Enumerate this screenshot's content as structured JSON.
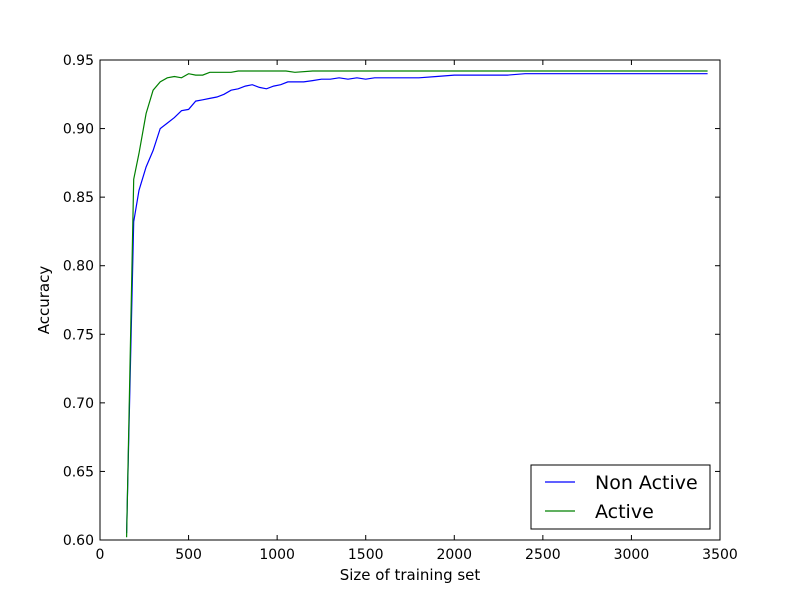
{
  "chart_data": {
    "type": "line",
    "title": "",
    "xlabel": "Size of training set",
    "ylabel": "Accuracy",
    "xlim": [
      0,
      3500
    ],
    "ylim": [
      0.6,
      0.95
    ],
    "xticks": [
      0,
      500,
      1000,
      1500,
      2000,
      2500,
      3000,
      3500
    ],
    "yticks": [
      0.6,
      0.65,
      0.7,
      0.75,
      0.8,
      0.85,
      0.9,
      0.95
    ],
    "xtick_labels": [
      "0",
      "500",
      "1000",
      "1500",
      "2000",
      "2500",
      "3000",
      "3500"
    ],
    "ytick_labels": [
      "0.60",
      "0.65",
      "0.70",
      "0.75",
      "0.80",
      "0.85",
      "0.90",
      "0.95"
    ],
    "grid": false,
    "legend_position": "lower-right",
    "series": [
      {
        "name": "Non Active",
        "color": "#0000ff",
        "x": [
          150,
          190,
          220,
          260,
          300,
          340,
          380,
          420,
          460,
          500,
          540,
          580,
          620,
          660,
          700,
          740,
          780,
          820,
          860,
          900,
          940,
          980,
          1020,
          1060,
          1100,
          1150,
          1200,
          1250,
          1300,
          1350,
          1400,
          1450,
          1500,
          1550,
          1600,
          1650,
          1700,
          1750,
          1800,
          1900,
          2000,
          2100,
          2200,
          2300,
          2400,
          2500,
          2600,
          2700,
          2800,
          2900,
          3000,
          3100,
          3200,
          3300,
          3430
        ],
        "y": [
          0.605,
          0.832,
          0.855,
          0.872,
          0.884,
          0.9,
          0.904,
          0.908,
          0.913,
          0.914,
          0.92,
          0.921,
          0.922,
          0.923,
          0.925,
          0.928,
          0.929,
          0.931,
          0.932,
          0.93,
          0.929,
          0.931,
          0.932,
          0.934,
          0.934,
          0.934,
          0.935,
          0.936,
          0.936,
          0.937,
          0.936,
          0.937,
          0.936,
          0.937,
          0.937,
          0.937,
          0.937,
          0.937,
          0.937,
          0.938,
          0.939,
          0.939,
          0.939,
          0.939,
          0.94,
          0.94,
          0.94,
          0.94,
          0.94,
          0.94,
          0.94,
          0.94,
          0.94,
          0.94,
          0.94
        ]
      },
      {
        "name": "Active",
        "color": "#008000",
        "x": [
          150,
          190,
          220,
          260,
          300,
          340,
          380,
          420,
          460,
          500,
          540,
          580,
          620,
          660,
          700,
          740,
          780,
          820,
          860,
          900,
          950,
          1000,
          1050,
          1100,
          1200,
          1300,
          1400,
          1500,
          1600,
          1700,
          1800,
          1900,
          2000,
          2100,
          2200,
          2300,
          2400,
          2500,
          2600,
          2700,
          2800,
          2900,
          3000,
          3100,
          3200,
          3300,
          3430
        ],
        "y": [
          0.602,
          0.863,
          0.882,
          0.911,
          0.928,
          0.934,
          0.937,
          0.938,
          0.937,
          0.94,
          0.939,
          0.939,
          0.941,
          0.941,
          0.941,
          0.941,
          0.942,
          0.942,
          0.942,
          0.942,
          0.942,
          0.942,
          0.942,
          0.941,
          0.942,
          0.942,
          0.942,
          0.942,
          0.942,
          0.942,
          0.942,
          0.942,
          0.942,
          0.942,
          0.942,
          0.942,
          0.942,
          0.942,
          0.942,
          0.942,
          0.942,
          0.942,
          0.942,
          0.942,
          0.942,
          0.942,
          0.942
        ]
      }
    ]
  }
}
